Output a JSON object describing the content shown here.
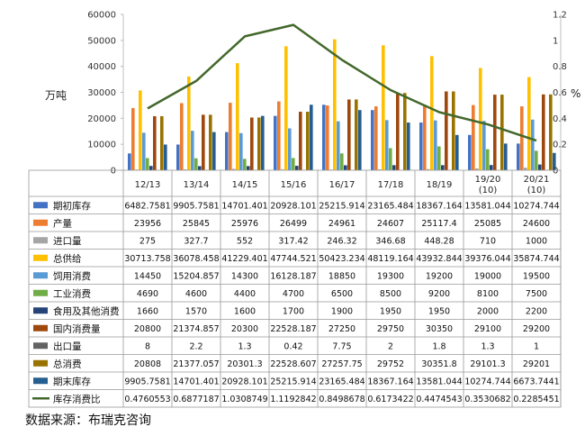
{
  "chart_data": {
    "type": "bar",
    "left_unit": "万吨",
    "right_unit": "%",
    "y_left_ticks": [
      0,
      10000,
      20000,
      30000,
      40000,
      50000,
      60000
    ],
    "y_right_ticks": [
      "0",
      "0.2",
      "0.4",
      "0.6",
      "0.8",
      "1",
      "1.2"
    ],
    "ylim": [
      0,
      60000
    ],
    "ylim_right": [
      0,
      1.2
    ],
    "categories": [
      {
        "line1": "12/13",
        "line2": ""
      },
      {
        "line1": "13/14",
        "line2": ""
      },
      {
        "line1": "14/15",
        "line2": ""
      },
      {
        "line1": "15/16",
        "line2": ""
      },
      {
        "line1": "16/17",
        "line2": ""
      },
      {
        "line1": "17/18",
        "line2": ""
      },
      {
        "line1": "18/19",
        "line2": ""
      },
      {
        "line1": "19/20",
        "line2": "(10)"
      },
      {
        "line1": "20/21",
        "line2": "(10)"
      }
    ],
    "series": [
      {
        "name": "期初库存",
        "color": "#4472C4",
        "kind": "bar",
        "values": [
          6482.7581,
          9905.7581,
          14701.401,
          20928.101,
          25215.914,
          23165.484,
          18367.164,
          13581.044,
          10274.744
        ],
        "labels": [
          "6482.7581",
          "9905.7581",
          "14701.401",
          "20928.101",
          "25215.914",
          "23165.484",
          "18367.164",
          "13581.044",
          "10274.744"
        ]
      },
      {
        "name": "产量",
        "color": "#ED7D31",
        "kind": "bar",
        "values": [
          23956,
          25845,
          25976,
          26499,
          24961,
          24607,
          25117.4,
          25085,
          24600
        ],
        "labels": [
          "23956",
          "25845",
          "25976",
          "26499",
          "24961",
          "24607",
          "25117.4",
          "25085",
          "24600"
        ]
      },
      {
        "name": "进口量",
        "color": "#A5A5A5",
        "kind": "bar",
        "values": [
          275,
          327.7,
          552,
          317.42,
          246.32,
          346.68,
          448.28,
          710,
          1000
        ],
        "labels": [
          "275",
          "327.7",
          "552",
          "317.42",
          "246.32",
          "346.68",
          "448.28",
          "710",
          "1000"
        ]
      },
      {
        "name": "总供给",
        "color": "#FFC000",
        "kind": "bar",
        "values": [
          30713.758,
          36078.458,
          41229.401,
          47744.521,
          50423.234,
          48119.164,
          43932.844,
          39376.044,
          35874.744
        ],
        "labels": [
          "30713.758",
          "36078.458",
          "41229.401",
          "47744.521",
          "50423.234",
          "48119.164",
          "43932.844",
          "39376.044",
          "35874.744"
        ]
      },
      {
        "name": "饲用消费",
        "color": "#5B9BD5",
        "kind": "bar",
        "values": [
          14450,
          15204.857,
          14300,
          16128.187,
          18850,
          19300,
          19200,
          19000,
          19500
        ],
        "labels": [
          "14450",
          "15204.857",
          "14300",
          "16128.187",
          "18850",
          "19300",
          "19200",
          "19000",
          "19500"
        ]
      },
      {
        "name": "工业消费",
        "color": "#70AD47",
        "kind": "bar",
        "values": [
          4690,
          4600,
          4400,
          4700,
          6500,
          8500,
          9200,
          8100,
          7500
        ],
        "labels": [
          "4690",
          "4600",
          "4400",
          "4700",
          "6500",
          "8500",
          "9200",
          "8100",
          "7500"
        ]
      },
      {
        "name": "食用及其他消费",
        "color": "#264478",
        "kind": "bar",
        "values": [
          1660,
          1570,
          1600,
          1700,
          1900,
          1950,
          1950,
          2000,
          2200
        ],
        "labels": [
          "1660",
          "1570",
          "1600",
          "1700",
          "1900",
          "1950",
          "1950",
          "2000",
          "2200"
        ]
      },
      {
        "name": "国内消费量",
        "color": "#9E480E",
        "kind": "bar",
        "values": [
          20800,
          21374.857,
          20300,
          22528.187,
          27250,
          29750,
          30350,
          29100,
          29200
        ],
        "labels": [
          "20800",
          "21374.857",
          "20300",
          "22528.187",
          "27250",
          "29750",
          "30350",
          "29100",
          "29200"
        ]
      },
      {
        "name": "出口量",
        "color": "#636363",
        "kind": "bar",
        "values": [
          8,
          2.2,
          1.3,
          0.42,
          7.75,
          2,
          1.8,
          1.3,
          1
        ],
        "labels": [
          "8",
          "2.2",
          "1.3",
          "0.42",
          "7.75",
          "2",
          "1.8",
          "1.3",
          "1"
        ]
      },
      {
        "name": "总消费",
        "color": "#997300",
        "kind": "bar",
        "values": [
          20808,
          21377.057,
          20301.3,
          22528.607,
          27257.75,
          29752,
          30351.8,
          29101.3,
          29201
        ],
        "labels": [
          "20808",
          "21377.057",
          "20301.3",
          "22528.607",
          "27257.75",
          "29752",
          "30351.8",
          "29101.3",
          "29201"
        ]
      },
      {
        "name": "期末库存",
        "color": "#255E91",
        "kind": "bar",
        "values": [
          9905.7581,
          14701.401,
          20928.101,
          25215.914,
          23165.484,
          18367.164,
          13581.044,
          10274.744,
          6673.7441
        ],
        "labels": [
          "9905.7581",
          "14701.401",
          "20928.101",
          "25215.914",
          "23165.484",
          "18367.164",
          "13581.044",
          "10274.744",
          "6673.7441"
        ]
      },
      {
        "name": "库存消费比",
        "color": "#43682B",
        "kind": "line",
        "values": [
          0.4760553,
          0.6877187,
          1.0308749,
          1.1192842,
          0.8498678,
          0.6173422,
          0.4474543,
          0.3530682,
          0.2285451
        ],
        "labels": [
          "0.4760553",
          "0.6877187",
          "1.0308749",
          "1.1192842",
          "0.8498678",
          "0.6173422",
          "0.4474543",
          "0.3530682",
          "0.2285451"
        ]
      }
    ]
  },
  "source_text": "数据来源：布瑞克咨询"
}
